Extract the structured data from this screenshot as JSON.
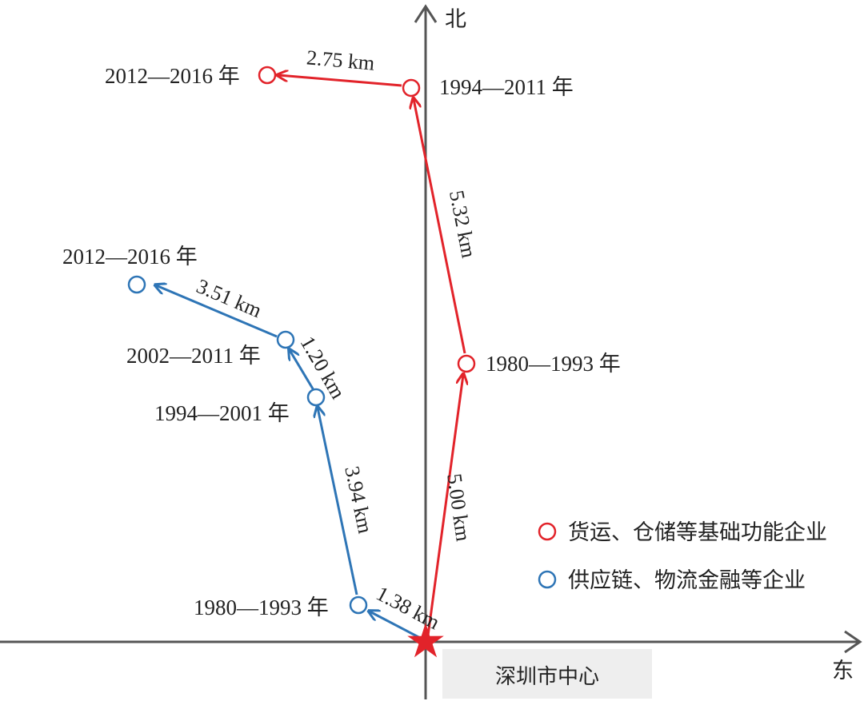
{
  "axes": {
    "north": "北",
    "east": "东"
  },
  "center_label": "深圳市中心",
  "colors": {
    "freight": "#e2232a",
    "supply": "#2e75b6",
    "axis": "#555555",
    "center_box": "#eeeeee"
  },
  "legend": [
    {
      "label": "货运、仓储等基础功能企业"
    },
    {
      "label": "供应链、物流金融等企业"
    }
  ],
  "freight": {
    "points": [
      {
        "label": "1980—1993 年"
      },
      {
        "label": "1994—2011 年"
      },
      {
        "label": "2012—2016 年"
      }
    ],
    "segments": [
      "5.00 km",
      "5.32 km",
      "2.75 km"
    ]
  },
  "supply": {
    "points": [
      {
        "label": "1980—1993 年"
      },
      {
        "label": "1994—2001 年"
      },
      {
        "label": "2002—2011 年"
      },
      {
        "label": "2012—2016 年"
      }
    ],
    "segments": [
      "1.38 km",
      "3.94 km",
      "1.20 km",
      "3.51 km"
    ]
  }
}
